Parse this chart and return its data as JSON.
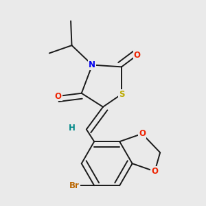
{
  "background_color": "#eaeaea",
  "bond_color": "#1a1a1a",
  "N_color": "#0000ee",
  "S_color": "#bbaa00",
  "O_color": "#ee2200",
  "Br_color": "#bb6600",
  "H_color": "#008888",
  "font_size_atoms": 8.5,
  "bond_width": 1.4,
  "xlim": [
    0.0,
    1.0
  ],
  "ylim": [
    0.0,
    1.05
  ],
  "figsize": [
    3.0,
    3.0
  ],
  "dpi": 100
}
